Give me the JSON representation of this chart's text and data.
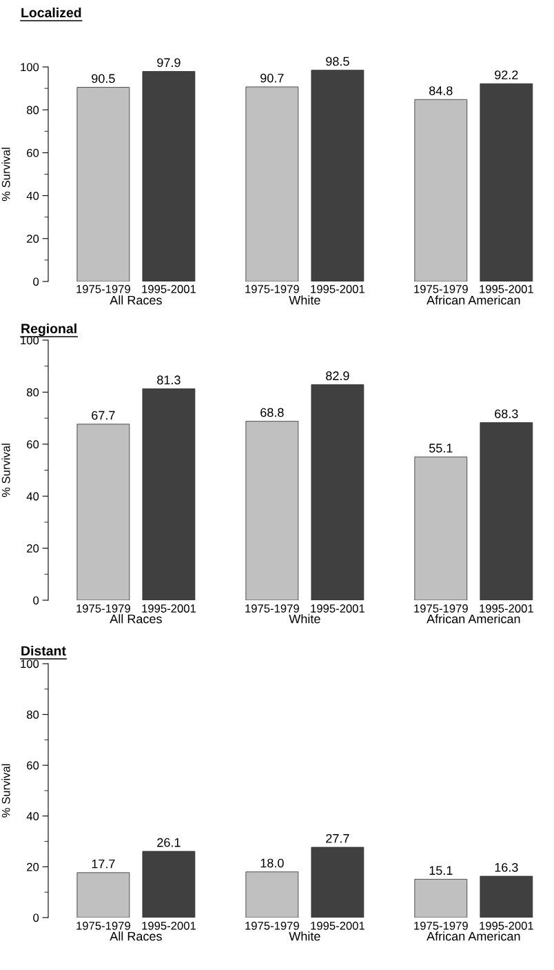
{
  "chart_data": [
    {
      "type": "bar",
      "title": "Localized",
      "ylabel": "% Survival",
      "categories": [
        "All Races",
        "White",
        "African American"
      ],
      "series": [
        {
          "name": "1975-1979",
          "color": "#c0c0c0",
          "values": [
            90.5,
            90.7,
            84.8
          ],
          "value_labels": [
            "90.5",
            "90.7",
            "84.8"
          ]
        },
        {
          "name": "1995-2001",
          "color": "#404040",
          "values": [
            97.9,
            98.5,
            92.2
          ],
          "value_labels": [
            "97.9",
            "98.5",
            "92.2"
          ]
        }
      ],
      "ylim": [
        0,
        100
      ],
      "yticks": [
        0,
        20,
        40,
        60,
        80,
        100
      ],
      "grid": false
    },
    {
      "type": "bar",
      "title": "Regional",
      "ylabel": "% Survival",
      "categories": [
        "All Races",
        "White",
        "African American"
      ],
      "series": [
        {
          "name": "1975-1979",
          "color": "#c0c0c0",
          "values": [
            67.7,
            68.8,
            55.1
          ],
          "value_labels": [
            "67.7",
            "68.8",
            "55.1"
          ]
        },
        {
          "name": "1995-2001",
          "color": "#404040",
          "values": [
            81.3,
            82.9,
            68.3
          ],
          "value_labels": [
            "81.3",
            "82.9",
            "68.3"
          ]
        }
      ],
      "ylim": [
        0,
        100
      ],
      "yticks": [
        0,
        20,
        40,
        60,
        80,
        100
      ],
      "grid": false
    },
    {
      "type": "bar",
      "title": "Distant",
      "ylabel": "% Survival",
      "categories": [
        "All Races",
        "White",
        "African American"
      ],
      "series": [
        {
          "name": "1975-1979",
          "color": "#c0c0c0",
          "values": [
            17.7,
            18.0,
            15.1
          ],
          "value_labels": [
            "17.7",
            "18.0",
            "15.1"
          ]
        },
        {
          "name": "1995-2001",
          "color": "#404040",
          "values": [
            26.1,
            27.7,
            16.3
          ],
          "value_labels": [
            "26.1",
            "27.7",
            "16.3"
          ]
        }
      ],
      "ylim": [
        0,
        100
      ],
      "yticks": [
        0,
        20,
        40,
        60,
        80,
        100
      ],
      "grid": false
    }
  ]
}
